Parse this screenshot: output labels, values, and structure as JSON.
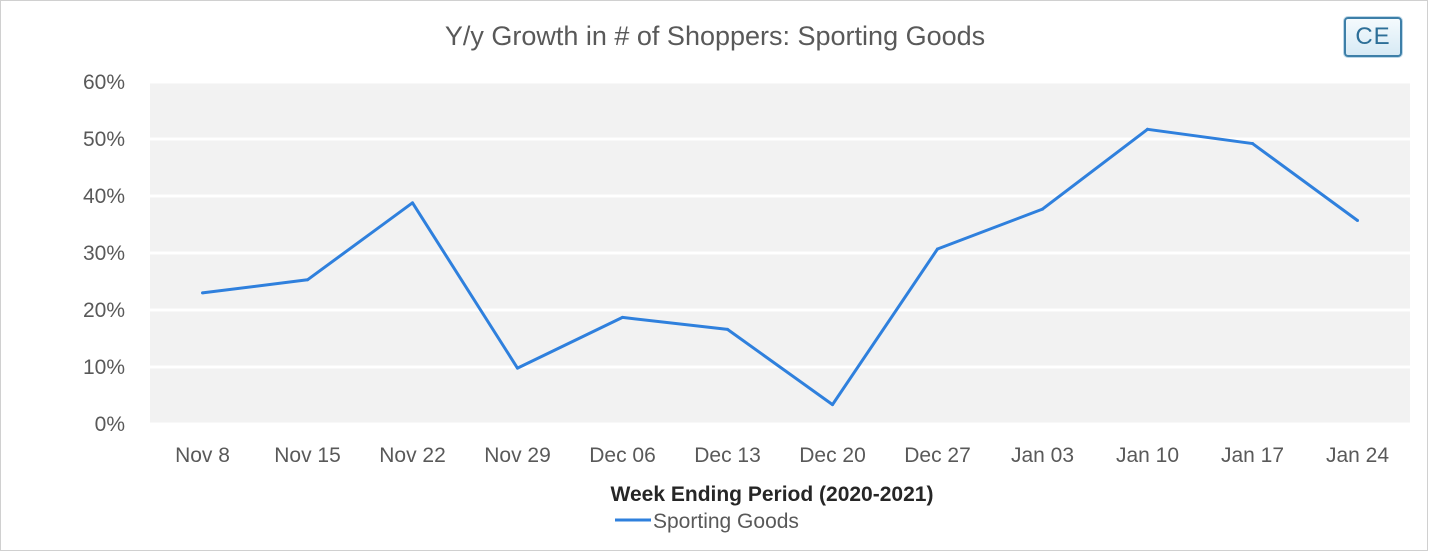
{
  "chart_data": {
    "type": "line",
    "title": "Y/y Growth in # of Shoppers: Sporting Goods",
    "xlabel": "Week Ending Period (2020-2021)",
    "ylabel": "",
    "categories": [
      "Nov 8",
      "Nov 15",
      "Nov 22",
      "Nov 29",
      "Dec 06",
      "Dec 13",
      "Dec 20",
      "Dec 27",
      "Jan 03",
      "Jan 10",
      "Jan 17",
      "Jan 24"
    ],
    "series": [
      {
        "name": "Sporting Goods",
        "values": [
          23.0,
          25.3,
          38.8,
          9.8,
          18.7,
          16.6,
          3.4,
          30.7,
          37.7,
          51.7,
          49.2,
          35.7
        ],
        "color": "#2f80dd"
      }
    ],
    "ylim": [
      0,
      60
    ],
    "yticks": [
      0,
      10,
      20,
      30,
      40,
      50,
      60
    ],
    "ytick_format": "percent",
    "grid": true,
    "legend": "bottom-center",
    "plot_background": "#f2f2f2"
  },
  "logo": {
    "text": "CE"
  }
}
